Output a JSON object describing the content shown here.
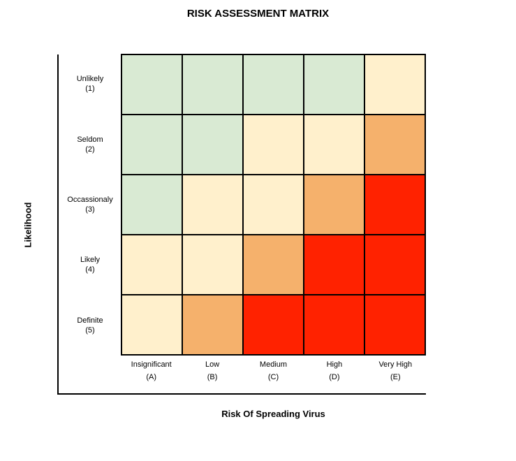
{
  "title": "RISK ASSESSMENT MATRIX",
  "y_axis_title": "Likelihood",
  "x_axis_title": "Risk Of Spreading Virus",
  "rows": [
    {
      "name": "Unlikely",
      "code": "(1)"
    },
    {
      "name": "Seldom",
      "code": "(2)"
    },
    {
      "name": "Occassionaly",
      "code": "(3)"
    },
    {
      "name": "Likely",
      "code": "(4)"
    },
    {
      "name": "Definite",
      "code": "(5)"
    }
  ],
  "columns": [
    {
      "name": "Insignificant",
      "code": "(A)"
    },
    {
      "name": "Low",
      "code": "(B)"
    },
    {
      "name": "Medium",
      "code": "(C)"
    },
    {
      "name": "High",
      "code": "(D)"
    },
    {
      "name": "Very High",
      "code": "(E)"
    }
  ],
  "level_colors": {
    "low": "#d9ead3",
    "moderate": "#fff0cc",
    "high": "#f5b16c",
    "extreme": "#ff2200"
  },
  "matrix": [
    [
      "low",
      "low",
      "low",
      "low",
      "moderate"
    ],
    [
      "low",
      "low",
      "moderate",
      "moderate",
      "high"
    ],
    [
      "low",
      "moderate",
      "moderate",
      "high",
      "extreme"
    ],
    [
      "moderate",
      "moderate",
      "high",
      "extreme",
      "extreme"
    ],
    [
      "moderate",
      "high",
      "extreme",
      "extreme",
      "extreme"
    ]
  ]
}
